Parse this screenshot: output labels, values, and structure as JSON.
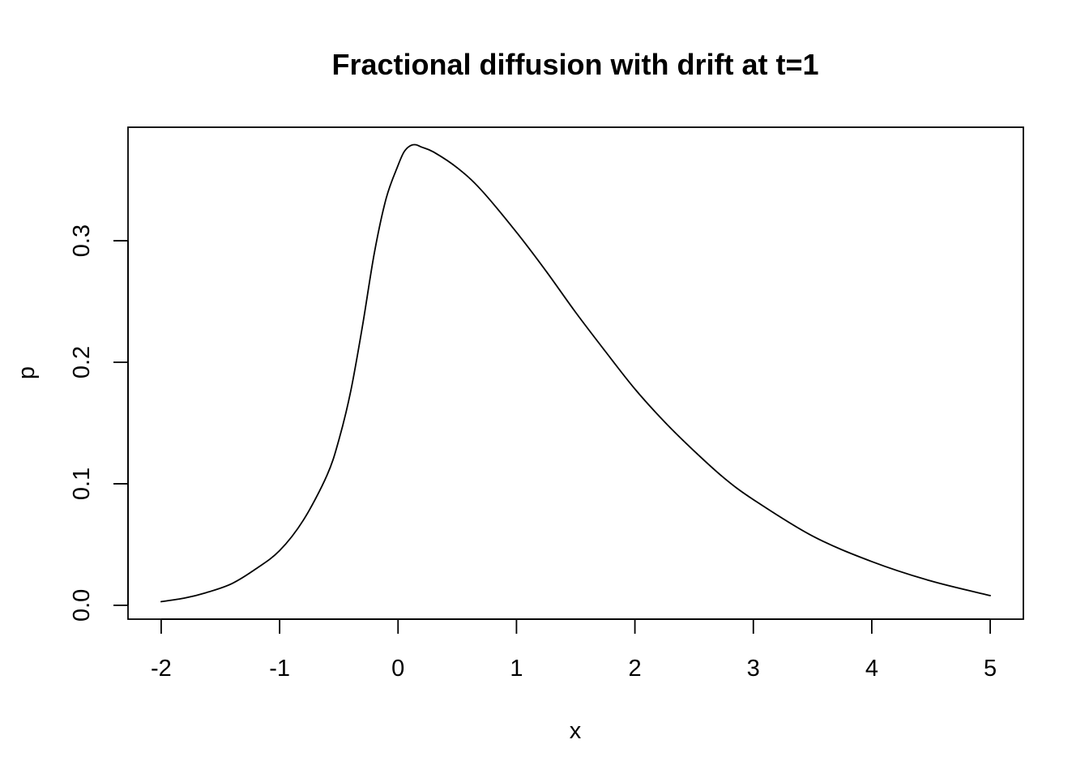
{
  "chart_data": {
    "type": "line",
    "title": "Fractional diffusion with drift at t=1",
    "xlabel": "x",
    "ylabel": "p",
    "xlim": [
      -2.28,
      5.28
    ],
    "ylim": [
      -0.0114,
      0.3934
    ],
    "x_ticks": [
      -2,
      -1,
      0,
      1,
      2,
      3,
      4,
      5
    ],
    "x_tick_labels": [
      "-2",
      "-1",
      "0",
      "1",
      "2",
      "3",
      "4",
      "5"
    ],
    "y_ticks": [
      0.0,
      0.1,
      0.2,
      0.3
    ],
    "y_tick_labels": [
      "0.0",
      "0.1",
      "0.2",
      "0.3"
    ],
    "grid": false,
    "legend": "none",
    "line_color": "#000000",
    "series": [
      {
        "x": [
          -2.0,
          -1.8,
          -1.6,
          -1.4,
          -1.2,
          -1.0,
          -0.8,
          -0.6,
          -0.5,
          -0.4,
          -0.3,
          -0.2,
          -0.1,
          0.0,
          0.05,
          0.1,
          0.15,
          0.2,
          0.3,
          0.5,
          0.7,
          1.0,
          1.25,
          1.5,
          1.75,
          2.0,
          2.25,
          2.5,
          2.75,
          3.0,
          3.5,
          4.0,
          4.5,
          5.0
        ],
        "y": [
          0.003,
          0.006,
          0.011,
          0.018,
          0.03,
          0.045,
          0.07,
          0.107,
          0.136,
          0.176,
          0.23,
          0.29,
          0.335,
          0.362,
          0.373,
          0.378,
          0.379,
          0.377,
          0.373,
          0.36,
          0.342,
          0.307,
          0.275,
          0.241,
          0.209,
          0.178,
          0.151,
          0.127,
          0.105,
          0.087,
          0.057,
          0.036,
          0.02,
          0.008
        ]
      }
    ]
  }
}
